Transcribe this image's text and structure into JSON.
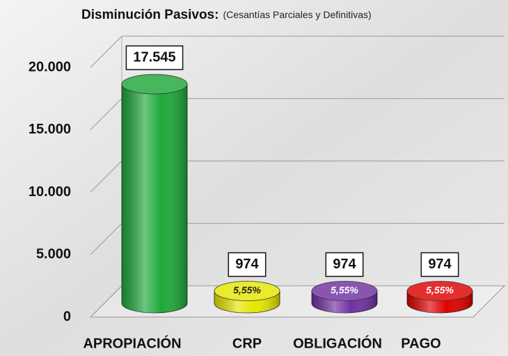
{
  "chart_data": {
    "type": "bar3d",
    "title": "Disminución Pasivos:",
    "subtitle": "(Cesantías Parciales y Definitivas)",
    "categories": [
      "APROPIACIÓN",
      "CRP",
      "OBLIGACIÓN",
      "PAGO"
    ],
    "values": [
      17545,
      974,
      974,
      974
    ],
    "value_labels": [
      "17.545",
      "974",
      "974",
      "974"
    ],
    "percent_labels": [
      null,
      "5,55%",
      "5,55%",
      "5,55%"
    ],
    "colors": [
      "#1ea83a",
      "#e6e600",
      "#7030a0",
      "#e00000"
    ],
    "ylim": [
      0,
      20000
    ],
    "yticks": [
      0,
      {
        "value": 5000,
        "label": "5.000"
      },
      {
        "value": 10000,
        "label": "10.000"
      },
      {
        "value": 15000,
        "label": "15.000"
      },
      {
        "value": 20000,
        "label": "20.000"
      }
    ],
    "grid": true
  }
}
